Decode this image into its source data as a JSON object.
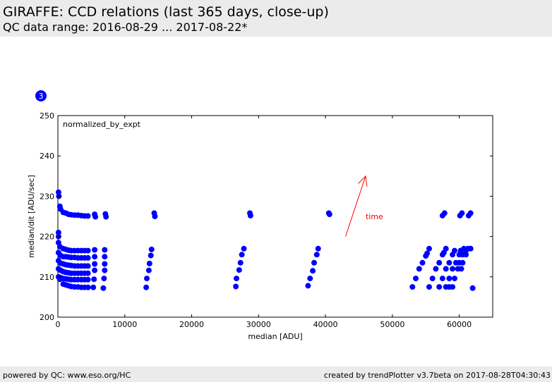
{
  "header": {
    "title": "GIRAFFE: CCD relations (last 365 days, close-up)",
    "subtitle": "QC data range: 2016-08-29 ... 2017-08-22*"
  },
  "footer": {
    "left": "powered by QC: www.eso.org/HC",
    "right": "created by trendPlotter v3.7beta on 2017-08-28T04:30:43"
  },
  "badge": {
    "label": "3"
  },
  "colors": {
    "points": "#0000ff",
    "arrow": "#ff0000",
    "panel": "#ebebeb"
  },
  "chart_data": {
    "type": "scatter",
    "xlabel": "median [ADU]",
    "ylabel": "median/dit [ADU/sec]",
    "annotation": "normalized_by_expt",
    "arrow_label": "time",
    "arrow": {
      "x1": 43000,
      "y1": 220,
      "x2": 46000,
      "y2": 235
    },
    "xlim": [
      0,
      65000
    ],
    "ylim": [
      200,
      250
    ],
    "xticks": [
      0,
      10000,
      20000,
      30000,
      40000,
      50000,
      60000
    ],
    "yticks": [
      200,
      210,
      220,
      230,
      240,
      250
    ],
    "grid": false,
    "points": [
      [
        100,
        231
      ],
      [
        150,
        230
      ],
      [
        300,
        227.5
      ],
      [
        400,
        226.8
      ],
      [
        800,
        226
      ],
      [
        1200,
        225.8
      ],
      [
        1600,
        225.5
      ],
      [
        2000,
        225.4
      ],
      [
        2500,
        225.3
      ],
      [
        3000,
        225.3
      ],
      [
        3500,
        225.2
      ],
      [
        4000,
        225.1
      ],
      [
        4500,
        225.1
      ],
      [
        5500,
        225.5
      ],
      [
        5600,
        224.9
      ],
      [
        7100,
        225.6
      ],
      [
        7200,
        224.9
      ],
      [
        14400,
        225.8
      ],
      [
        14500,
        225
      ],
      [
        28700,
        225.8
      ],
      [
        28800,
        225.2
      ],
      [
        40500,
        225.8
      ],
      [
        40600,
        225.5
      ],
      [
        57500,
        225.2
      ],
      [
        57800,
        225.8
      ],
      [
        60100,
        225.2
      ],
      [
        60400,
        225.8
      ],
      [
        61400,
        225.2
      ],
      [
        61700,
        225.8
      ],
      [
        100,
        221
      ],
      [
        100,
        220
      ],
      [
        100,
        218.5
      ],
      [
        300,
        217.5
      ],
      [
        800,
        217
      ],
      [
        1200,
        216.8
      ],
      [
        1600,
        216.6
      ],
      [
        2000,
        216.5
      ],
      [
        2500,
        216.5
      ],
      [
        3000,
        216.5
      ],
      [
        3500,
        216.5
      ],
      [
        4000,
        216.5
      ],
      [
        4500,
        216.5
      ],
      [
        5500,
        216.7
      ],
      [
        7000,
        216.7
      ],
      [
        14000,
        216.8
      ],
      [
        27800,
        217
      ],
      [
        38900,
        217
      ],
      [
        100,
        216
      ],
      [
        400,
        215.3
      ],
      [
        800,
        215
      ],
      [
        1200,
        215
      ],
      [
        1600,
        214.9
      ],
      [
        2000,
        214.8
      ],
      [
        2500,
        214.8
      ],
      [
        3000,
        214.7
      ],
      [
        3500,
        214.7
      ],
      [
        4000,
        214.7
      ],
      [
        4500,
        214.7
      ],
      [
        5500,
        215
      ],
      [
        7000,
        215
      ],
      [
        13900,
        215.3
      ],
      [
        27500,
        215.5
      ],
      [
        38700,
        215.5
      ],
      [
        100,
        214
      ],
      [
        400,
        213.4
      ],
      [
        800,
        213.2
      ],
      [
        1200,
        213
      ],
      [
        1600,
        212.9
      ],
      [
        2000,
        212.8
      ],
      [
        2500,
        212.7
      ],
      [
        3000,
        212.7
      ],
      [
        3500,
        212.7
      ],
      [
        4000,
        212.7
      ],
      [
        4500,
        212.7
      ],
      [
        5500,
        213.2
      ],
      [
        7000,
        213.2
      ],
      [
        13700,
        213.3
      ],
      [
        27300,
        213.5
      ],
      [
        38300,
        213.5
      ],
      [
        100,
        212
      ],
      [
        400,
        211.6
      ],
      [
        800,
        211.3
      ],
      [
        1200,
        211.1
      ],
      [
        1600,
        211
      ],
      [
        2000,
        210.9
      ],
      [
        2500,
        210.9
      ],
      [
        3000,
        210.9
      ],
      [
        3500,
        210.9
      ],
      [
        4000,
        210.9
      ],
      [
        4500,
        210.9
      ],
      [
        5500,
        211.6
      ],
      [
        7000,
        211.6
      ],
      [
        13600,
        211.6
      ],
      [
        27100,
        211.7
      ],
      [
        38100,
        211.5
      ],
      [
        100,
        210
      ],
      [
        400,
        209.8
      ],
      [
        800,
        209.6
      ],
      [
        1200,
        209.5
      ],
      [
        1600,
        209.4
      ],
      [
        2000,
        209.3
      ],
      [
        2500,
        209.3
      ],
      [
        3000,
        209.3
      ],
      [
        3500,
        209.3
      ],
      [
        4000,
        209.3
      ],
      [
        4500,
        209.3
      ],
      [
        5400,
        209.4
      ],
      [
        6900,
        209.6
      ],
      [
        13300,
        209.6
      ],
      [
        26700,
        209.6
      ],
      [
        37700,
        209.6
      ],
      [
        300,
        209.4
      ],
      [
        800,
        208.2
      ],
      [
        1200,
        208
      ],
      [
        1600,
        207.8
      ],
      [
        2000,
        207.6
      ],
      [
        2500,
        207.5
      ],
      [
        3000,
        207.5
      ],
      [
        3500,
        207.4
      ],
      [
        4000,
        207.4
      ],
      [
        4500,
        207.4
      ],
      [
        5300,
        207.4
      ],
      [
        6800,
        207.2
      ],
      [
        13200,
        207.4
      ],
      [
        26600,
        207.6
      ],
      [
        37400,
        207.8
      ],
      [
        53000,
        207.5
      ],
      [
        53500,
        209.6
      ],
      [
        54000,
        212
      ],
      [
        54500,
        213.5
      ],
      [
        55000,
        215.2
      ],
      [
        55200,
        215.8
      ],
      [
        55500,
        217
      ],
      [
        55500,
        207.5
      ],
      [
        56000,
        209.6
      ],
      [
        56500,
        212
      ],
      [
        57000,
        213.5
      ],
      [
        57000,
        207.5
      ],
      [
        57500,
        215.5
      ],
      [
        57500,
        209.6
      ],
      [
        57700,
        216
      ],
      [
        58000,
        217
      ],
      [
        58000,
        212
      ],
      [
        58000,
        207.5
      ],
      [
        58500,
        213.5
      ],
      [
        58500,
        209.6
      ],
      [
        58500,
        207.5
      ],
      [
        59000,
        215.5
      ],
      [
        59000,
        212
      ],
      [
        59000,
        207.5
      ],
      [
        59300,
        216.5
      ],
      [
        59300,
        209.6
      ],
      [
        59500,
        213.5
      ],
      [
        59800,
        212
      ],
      [
        60000,
        215.5
      ],
      [
        60000,
        213.5
      ],
      [
        60200,
        216.5
      ],
      [
        60300,
        212
      ],
      [
        60500,
        215.5
      ],
      [
        60500,
        213.5
      ],
      [
        60700,
        217
      ],
      [
        61000,
        216.5
      ],
      [
        61000,
        215.5
      ],
      [
        61300,
        217
      ],
      [
        61700,
        217
      ],
      [
        62000,
        207.2
      ]
    ]
  }
}
